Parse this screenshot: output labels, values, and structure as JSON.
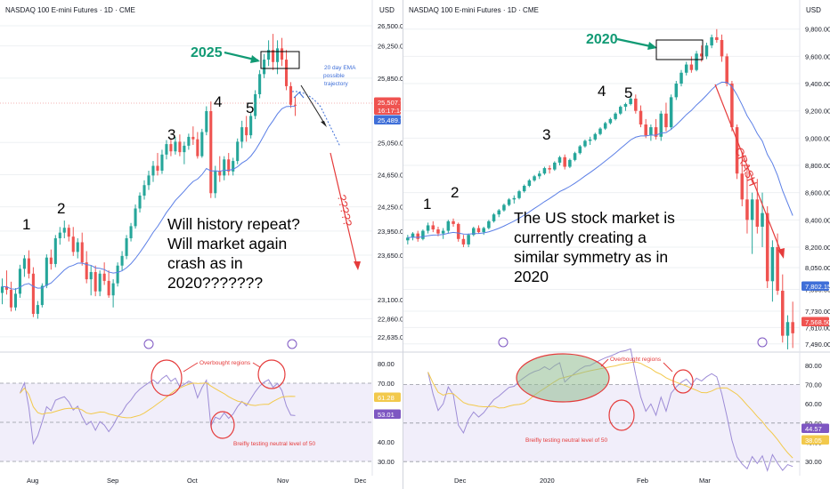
{
  "colors": {
    "up": "#26a69a",
    "down": "#ef5350",
    "ema": "#5b7fe6",
    "rsi": "#9d8cd6",
    "rsi_ma": "#f2c94c",
    "annotation_red": "#e53b3b",
    "annotation_blue": "#3f6fd8",
    "year_green": "#119a74",
    "grid": "#eef0f3"
  },
  "panels": [
    {
      "id": "left",
      "title": "NASDAQ 100 E-mini Futures · 1D · CME",
      "currency": "USD",
      "price_ticks": [
        "26,500.00",
        "26,250.00",
        "25,850.00",
        "25,050.00",
        "24,650.00",
        "24,250.00",
        "23,950.00",
        "23,650.00",
        "23,100.00",
        "22,860.00",
        "22,635.00"
      ],
      "rsi_ticks": [
        "80.00",
        "70.00",
        "40.00",
        "30.00"
      ],
      "date_labels": [
        "Aug",
        "Sep",
        "Oct",
        "Nov",
        "Dec"
      ],
      "price_tags": [
        {
          "text": "25,507.75",
          "color": "#ef5350"
        },
        {
          "text": "16:17:14",
          "color": "#ef5350"
        },
        {
          "text": "25,489.75",
          "color": "#3f6fd8"
        }
      ],
      "rsi_tags": [
        {
          "text": "61.28",
          "color": "#f2c94c"
        },
        {
          "text": "53.01",
          "color": "#7e57c2"
        }
      ],
      "annotations": {
        "year": "2025",
        "ema_note": [
          "20 day EMA",
          "possible",
          "trajectory"
        ],
        "question": "?????",
        "main_text": [
          "Will history repeat?",
          "Will market again",
          "crash as in",
          "2020???????"
        ],
        "overbought": "Overbought regions",
        "neutral": "Breifly testing neutral level of 50",
        "waves": [
          "1",
          "2",
          "3",
          "4",
          "5"
        ]
      }
    },
    {
      "id": "right",
      "title": "NASDAQ 100 E-mini Futures · 1D · CME",
      "currency": "USD",
      "price_ticks": [
        "9,800.00",
        "9,600.00",
        "9,400.00",
        "9,200.00",
        "9,000.00",
        "8,800.00",
        "8,600.00",
        "8,400.00",
        "8,200.00",
        "8,050.00",
        "7,890.00",
        "7,730.00",
        "7,610.00",
        "7,490.00"
      ],
      "rsi_ticks": [
        "80.00",
        "70.00",
        "60.00",
        "50.00",
        "40.00",
        "30.00"
      ],
      "date_labels": [
        "Dec",
        "2020",
        "Feb",
        "Mar"
      ],
      "price_tags": [
        {
          "text": "7,802.15",
          "color": "#3f6fd8"
        },
        {
          "text": "7,568.50",
          "color": "#ef5350"
        }
      ],
      "rsi_tags": [
        {
          "text": "44.57",
          "color": "#7e57c2"
        },
        {
          "text": "38.05",
          "color": "#f2c94c"
        }
      ],
      "annotations": {
        "year": "2020",
        "crash": "CRASH",
        "main_text": [
          "The US stock market is",
          "currently  creating a",
          "similar symmetry as in",
          "2020"
        ],
        "overbought": "Overbought regions",
        "neutral": "Breifly testing neutral level of 50",
        "waves": [
          "1",
          "2",
          "3",
          "4",
          "5"
        ]
      }
    }
  ],
  "chart_data": [
    {
      "type": "candlestick",
      "title": "NASDAQ 100 E-mini Futures · 1D · CME (2025)",
      "ylim": [
        22600,
        26600
      ],
      "indicator": "20 day EMA",
      "candles": [
        [
          23180,
          23360,
          23040,
          23260
        ],
        [
          23260,
          23460,
          23160,
          23220
        ],
        [
          23220,
          23320,
          22950,
          23000
        ],
        [
          23000,
          23240,
          22960,
          23170
        ],
        [
          23170,
          23530,
          23120,
          23480
        ],
        [
          23480,
          23650,
          23380,
          23610
        ],
        [
          23610,
          23710,
          23360,
          23420
        ],
        [
          23420,
          23500,
          22880,
          22920
        ],
        [
          22920,
          23080,
          22860,
          23030
        ],
        [
          23030,
          23300,
          23000,
          23270
        ],
        [
          23270,
          23660,
          23240,
          23620
        ],
        [
          23620,
          23720,
          23470,
          23540
        ],
        [
          23540,
          23900,
          23500,
          23860
        ],
        [
          23860,
          24000,
          23780,
          23930
        ],
        [
          23930,
          24080,
          23860,
          23990
        ],
        [
          23990,
          24030,
          23820,
          23880
        ],
        [
          23880,
          24000,
          23640,
          23690
        ],
        [
          23690,
          23860,
          23610,
          23810
        ],
        [
          23810,
          23930,
          23520,
          23560
        ],
        [
          23560,
          23700,
          23300,
          23350
        ],
        [
          23350,
          23520,
          23150,
          23440
        ],
        [
          23440,
          23520,
          23140,
          23200
        ],
        [
          23200,
          23460,
          23140,
          23420
        ],
        [
          23420,
          23560,
          23280,
          23330
        ],
        [
          23330,
          23460,
          23120,
          23150
        ],
        [
          23150,
          23350,
          23000,
          23300
        ],
        [
          23300,
          23560,
          23260,
          23520
        ],
        [
          23520,
          23700,
          23460,
          23640
        ],
        [
          23640,
          23900,
          23600,
          23860
        ],
        [
          23860,
          24050,
          23820,
          24010
        ],
        [
          24010,
          24280,
          23980,
          24230
        ],
        [
          24230,
          24430,
          24180,
          24390
        ],
        [
          24390,
          24580,
          24340,
          24520
        ],
        [
          24520,
          24700,
          24460,
          24640
        ],
        [
          24640,
          24820,
          24560,
          24760
        ],
        [
          24760,
          24920,
          24640,
          24700
        ],
        [
          24700,
          24960,
          24660,
          24900
        ],
        [
          24900,
          25080,
          24840,
          25030
        ],
        [
          25030,
          25100,
          24880,
          24940
        ],
        [
          24940,
          25120,
          24900,
          25060
        ],
        [
          25060,
          25150,
          24880,
          24930
        ],
        [
          24930,
          25060,
          24780,
          25010
        ],
        [
          25010,
          25160,
          24960,
          25120
        ],
        [
          25120,
          25250,
          25020,
          25090
        ],
        [
          25090,
          25180,
          24850,
          24880
        ],
        [
          24880,
          25220,
          24860,
          25180
        ],
        [
          25180,
          25500,
          25140,
          25440
        ],
        [
          25440,
          25560,
          24360,
          24420
        ],
        [
          24420,
          24760,
          24360,
          24700
        ],
        [
          24700,
          24880,
          24560,
          24640
        ],
        [
          24640,
          24880,
          24580,
          24840
        ],
        [
          24840,
          24920,
          24640,
          24690
        ],
        [
          24690,
          24860,
          24640,
          24820
        ],
        [
          24820,
          25100,
          24780,
          25060
        ],
        [
          25060,
          25320,
          24980,
          25240
        ],
        [
          25240,
          25380,
          25060,
          25140
        ],
        [
          25140,
          25420,
          25100,
          25380
        ],
        [
          25380,
          25700,
          25340,
          25650
        ],
        [
          25650,
          25950,
          25600,
          25900
        ],
        [
          25900,
          26150,
          25850,
          26080
        ],
        [
          26080,
          26320,
          26000,
          26200
        ],
        [
          26200,
          26400,
          25950,
          26050
        ],
        [
          26050,
          26320,
          25900,
          26220
        ],
        [
          26220,
          26350,
          26000,
          26080
        ],
        [
          26080,
          26200,
          25700,
          25750
        ],
        [
          25750,
          25800,
          25480,
          25520
        ],
        [
          25520,
          25620,
          25380,
          25508
        ]
      ]
    },
    {
      "type": "candlestick",
      "title": "NASDAQ 100 E-mini Futures · 1D · CME (2020)",
      "ylim": [
        7430,
        9870
      ],
      "indicator": "20 day EMA",
      "candles": [
        [
          8250,
          8290,
          8220,
          8270
        ],
        [
          8270,
          8310,
          8250,
          8300
        ],
        [
          8300,
          8320,
          8240,
          8260
        ],
        [
          8260,
          8330,
          8250,
          8320
        ],
        [
          8320,
          8380,
          8300,
          8360
        ],
        [
          8360,
          8390,
          8310,
          8330
        ],
        [
          8330,
          8350,
          8280,
          8300
        ],
        [
          8300,
          8340,
          8260,
          8320
        ],
        [
          8320,
          8400,
          8300,
          8390
        ],
        [
          8390,
          8410,
          8350,
          8370
        ],
        [
          8370,
          8380,
          8240,
          8260
        ],
        [
          8260,
          8290,
          8200,
          8220
        ],
        [
          8220,
          8300,
          8200,
          8290
        ],
        [
          8290,
          8350,
          8280,
          8340
        ],
        [
          8340,
          8360,
          8300,
          8310
        ],
        [
          8310,
          8350,
          8290,
          8340
        ],
        [
          8340,
          8400,
          8330,
          8390
        ],
        [
          8390,
          8450,
          8380,
          8440
        ],
        [
          8440,
          8480,
          8420,
          8470
        ],
        [
          8470,
          8520,
          8460,
          8510
        ],
        [
          8510,
          8560,
          8500,
          8550
        ],
        [
          8550,
          8580,
          8520,
          8560
        ],
        [
          8560,
          8620,
          8550,
          8610
        ],
        [
          8610,
          8660,
          8600,
          8650
        ],
        [
          8650,
          8700,
          8640,
          8690
        ],
        [
          8690,
          8730,
          8680,
          8720
        ],
        [
          8720,
          8760,
          8700,
          8740
        ],
        [
          8740,
          8790,
          8730,
          8780
        ],
        [
          8780,
          8800,
          8740,
          8770
        ],
        [
          8770,
          8830,
          8760,
          8820
        ],
        [
          8820,
          8870,
          8800,
          8860
        ],
        [
          8860,
          8880,
          8770,
          8790
        ],
        [
          8790,
          8850,
          8780,
          8840
        ],
        [
          8840,
          8900,
          8830,
          8890
        ],
        [
          8890,
          8950,
          8880,
          8940
        ],
        [
          8940,
          8990,
          8930,
          8980
        ],
        [
          8980,
          9010,
          8950,
          8990
        ],
        [
          8990,
          9040,
          8980,
          9030
        ],
        [
          9030,
          9080,
          9020,
          9070
        ],
        [
          9070,
          9120,
          9060,
          9110
        ],
        [
          9110,
          9150,
          9100,
          9140
        ],
        [
          9140,
          9190,
          9130,
          9180
        ],
        [
          9180,
          9240,
          9170,
          9230
        ],
        [
          9230,
          9260,
          9200,
          9250
        ],
        [
          9250,
          9300,
          9240,
          9290
        ],
        [
          9290,
          9320,
          9180,
          9200
        ],
        [
          9200,
          9240,
          9080,
          9100
        ],
        [
          9100,
          9140,
          9000,
          9020
        ],
        [
          9020,
          9100,
          8980,
          9080
        ],
        [
          9080,
          9140,
          8990,
          9010
        ],
        [
          9010,
          9200,
          8980,
          9180
        ],
        [
          9180,
          9260,
          9050,
          9080
        ],
        [
          9080,
          9320,
          9060,
          9300
        ],
        [
          9300,
          9420,
          9280,
          9400
        ],
        [
          9400,
          9500,
          9380,
          9480
        ],
        [
          9480,
          9560,
          9460,
          9540
        ],
        [
          9540,
          9600,
          9480,
          9500
        ],
        [
          9500,
          9640,
          9490,
          9620
        ],
        [
          9620,
          9680,
          9560,
          9600
        ],
        [
          9600,
          9700,
          9580,
          9680
        ],
        [
          9680,
          9760,
          9660,
          9740
        ],
        [
          9740,
          9800,
          9700,
          9720
        ],
        [
          9720,
          9760,
          9560,
          9600
        ],
        [
          9600,
          9620,
          9380,
          9400
        ],
        [
          9400,
          9420,
          9050,
          9080
        ],
        [
          9080,
          9100,
          8700,
          8740
        ],
        [
          8740,
          8900,
          8500,
          8550
        ],
        [
          8550,
          8800,
          8300,
          8400
        ],
        [
          8400,
          8600,
          8150,
          8550
        ],
        [
          8550,
          8700,
          8300,
          8350
        ],
        [
          8350,
          8600,
          8200,
          8450
        ],
        [
          8450,
          8500,
          7900,
          7950
        ],
        [
          7950,
          8250,
          7800,
          8200
        ],
        [
          8200,
          8300,
          7850,
          7880
        ],
        [
          7880,
          8000,
          7500,
          7550
        ],
        [
          7550,
          7700,
          7450,
          7650
        ],
        [
          7650,
          7800,
          7460,
          7568
        ]
      ]
    }
  ]
}
